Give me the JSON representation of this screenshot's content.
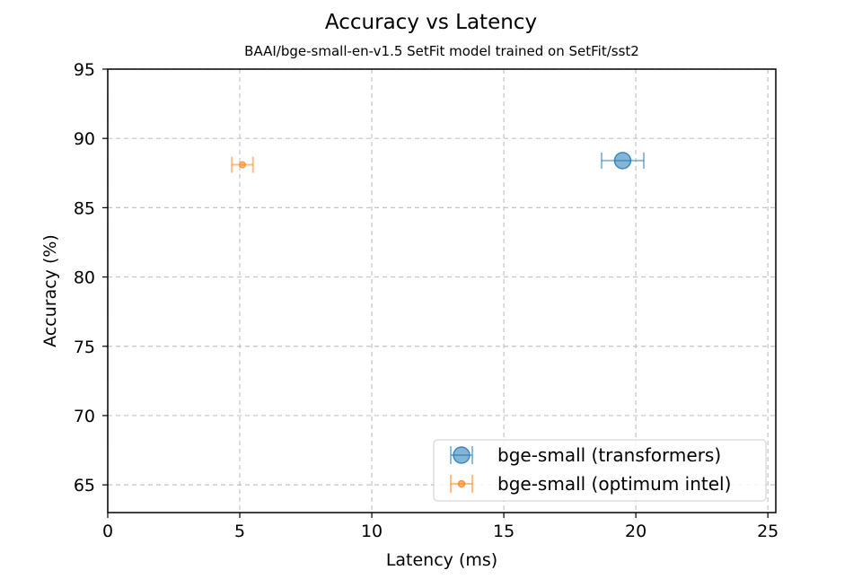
{
  "chart_data": {
    "type": "scatter",
    "title": "Accuracy vs Latency",
    "subtitle": "BAAI/bge-small-en-v1.5 SetFit model trained on SetFit/sst2",
    "xlabel": "Latency (ms)",
    "ylabel": "Accuracy (%)",
    "xlim": [
      0,
      25.3
    ],
    "ylim": [
      63,
      95
    ],
    "xticks": [
      "0",
      "5",
      "10",
      "15",
      "20",
      "25"
    ],
    "yticks": [
      "65",
      "70",
      "75",
      "80",
      "85",
      "90",
      "95"
    ],
    "grid": true,
    "legend_position": "lower-right",
    "series": [
      {
        "name": "bge-small (transformers)",
        "color": "#1f77b4",
        "marker": "large-circle",
        "x": 19.5,
        "y": 88.4,
        "xerr": 0.8
      },
      {
        "name": "bge-small (optimum intel)",
        "color": "#ff7f0e",
        "marker": "small-circle",
        "x": 5.1,
        "y": 88.1,
        "xerr": 0.4
      }
    ]
  }
}
